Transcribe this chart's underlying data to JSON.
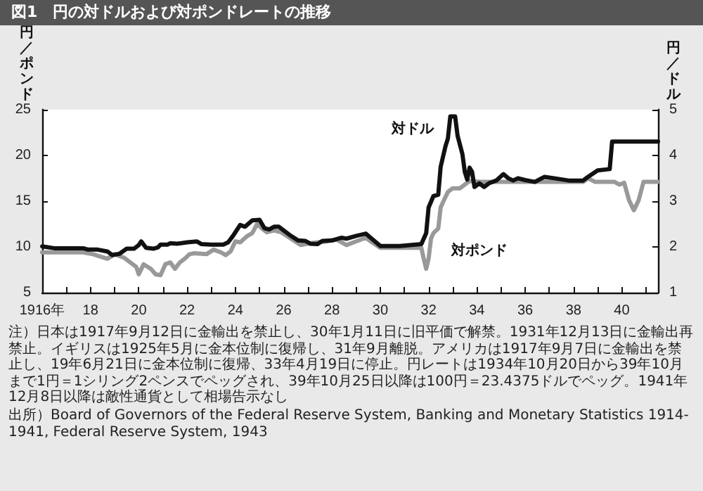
{
  "chart_data": {
    "type": "line",
    "title": "図1　円の対ドルおよび対ポンドレートの推移",
    "ylabel": "円／ポンド",
    "y2label": "円／ドル",
    "xlim": [
      1916,
      1941.5
    ],
    "xticks": [
      {
        "value": 1916,
        "label": null
      },
      {
        "value": 1917,
        "label": null
      },
      {
        "value": 1918,
        "label": null
      },
      {
        "value": 1919,
        "label": null
      },
      {
        "value": 1920,
        "label": null
      },
      {
        "value": 1921,
        "label": null
      },
      {
        "value": 1922,
        "label": null
      },
      {
        "value": 1923,
        "label": null
      },
      {
        "value": 1924,
        "label": null
      },
      {
        "value": 1925,
        "label": null
      },
      {
        "value": 1926,
        "label": null
      },
      {
        "value": 1927,
        "label": null
      },
      {
        "value": 1928,
        "label": null
      },
      {
        "value": 1929,
        "label": null
      },
      {
        "value": 1930,
        "label": null
      },
      {
        "value": 1931,
        "label": null
      },
      {
        "value": 1932,
        "label": null
      },
      {
        "value": 1933,
        "label": null
      },
      {
        "value": 1934,
        "label": null
      },
      {
        "value": 1935,
        "label": null
      },
      {
        "value": 1936,
        "label": null
      },
      {
        "value": 1937,
        "label": null
      },
      {
        "value": 1938,
        "label": null
      },
      {
        "value": 1939,
        "label": null
      },
      {
        "value": 1940,
        "label": null
      },
      {
        "value": 1941,
        "label": null
      },
      {
        "value": 1916,
        "label": "1916年"
      },
      {
        "value": 1918,
        "label": "18"
      },
      {
        "value": 1920,
        "label": "20"
      },
      {
        "value": 1922,
        "label": "22"
      },
      {
        "value": 1924,
        "label": "24"
      },
      {
        "value": 1926,
        "label": "26"
      },
      {
        "value": 1928,
        "label": "28"
      },
      {
        "value": 1930,
        "label": "30"
      },
      {
        "value": 1932,
        "label": "32"
      },
      {
        "value": 1934,
        "label": "34"
      },
      {
        "value": 1936,
        "label": "36"
      },
      {
        "value": 1938,
        "label": "38"
      },
      {
        "value": 1940,
        "label": "40"
      }
    ],
    "ylim": [
      5,
      25
    ],
    "yticks": [
      5,
      10,
      15,
      20,
      25
    ],
    "y2lim": [
      1,
      5
    ],
    "y2ticks": [
      1,
      2,
      3,
      4,
      5
    ],
    "grid": false,
    "legend": false,
    "marker": "none",
    "line_style": "solid",
    "series": [
      {
        "name": "対ドル",
        "color": "#111111",
        "axis": "y2",
        "x": [
          1916.0,
          1916.5,
          1917.7,
          1917.9,
          1918.3,
          1918.7,
          1918.9,
          1919.2,
          1919.5,
          1919.8,
          1920.0,
          1920.1,
          1920.3,
          1920.6,
          1920.8,
          1920.9,
          1921.2,
          1921.3,
          1921.6,
          1922.0,
          1922.4,
          1922.6,
          1923.0,
          1923.5,
          1923.7,
          1923.9,
          1924.2,
          1924.4,
          1924.7,
          1925.0,
          1925.2,
          1925.4,
          1925.6,
          1925.8,
          1926.3,
          1926.6,
          1926.9,
          1927.1,
          1927.4,
          1927.6,
          1928.0,
          1928.2,
          1928.4,
          1928.6,
          1929.0,
          1929.4,
          1929.6,
          1930.0,
          1930.8,
          1931.7,
          1931.9,
          1932.0,
          1932.2,
          1932.4,
          1932.5,
          1932.7,
          1932.8,
          1932.9,
          1933.1,
          1933.2,
          1933.4,
          1933.5,
          1933.6,
          1933.7,
          1933.8,
          1933.9,
          1934.1,
          1934.3,
          1934.5,
          1934.8,
          1935.1,
          1935.3,
          1935.5,
          1935.7,
          1936.0,
          1936.4,
          1936.8,
          1937.2,
          1937.8,
          1938.4,
          1938.6,
          1939.0,
          1939.5,
          1939.6,
          1939.9,
          1941.5
        ],
        "values": [
          2.01,
          1.97,
          1.97,
          1.94,
          1.94,
          1.9,
          1.82,
          1.85,
          1.96,
          1.96,
          2.04,
          2.12,
          1.98,
          1.96,
          1.99,
          2.05,
          2.05,
          2.08,
          2.07,
          2.1,
          2.12,
          2.06,
          2.05,
          2.05,
          2.1,
          2.24,
          2.48,
          2.44,
          2.58,
          2.59,
          2.41,
          2.38,
          2.44,
          2.44,
          2.24,
          2.14,
          2.13,
          2.07,
          2.06,
          2.13,
          2.14,
          2.17,
          2.2,
          2.18,
          2.24,
          2.29,
          2.2,
          2.02,
          2.02,
          2.06,
          2.3,
          2.86,
          3.11,
          3.14,
          3.75,
          4.2,
          4.37,
          4.85,
          4.85,
          4.43,
          4.03,
          3.64,
          3.47,
          3.73,
          3.64,
          3.31,
          3.39,
          3.31,
          3.39,
          3.45,
          3.59,
          3.5,
          3.45,
          3.5,
          3.46,
          3.42,
          3.53,
          3.5,
          3.45,
          3.45,
          3.53,
          3.67,
          3.7,
          4.3,
          4.3,
          4.3
        ]
      },
      {
        "name": "対ポンド",
        "color": "#999999",
        "x": [
          1916.0,
          1917.7,
          1918.1,
          1918.7,
          1919.0,
          1919.4,
          1919.7,
          1919.9,
          1920.0,
          1920.2,
          1920.5,
          1920.7,
          1920.9,
          1921.1,
          1921.3,
          1921.5,
          1921.7,
          1921.9,
          1922.1,
          1922.3,
          1922.8,
          1923.1,
          1923.4,
          1923.6,
          1923.8,
          1924.0,
          1924.2,
          1924.5,
          1924.7,
          1924.9,
          1925.1,
          1925.3,
          1925.6,
          1925.9,
          1926.3,
          1926.7,
          1927.1,
          1927.4,
          1927.8,
          1928.2,
          1928.6,
          1929.4,
          1929.6,
          1930.0,
          1931.7,
          1931.8,
          1931.9,
          1932.0,
          1932.1,
          1932.2,
          1932.4,
          1932.5,
          1932.6,
          1932.8,
          1933.0,
          1933.3,
          1933.5,
          1933.7,
          1934.1,
          1936.0,
          1938.4,
          1938.6,
          1938.9,
          1939.7,
          1939.9,
          1940.1,
          1940.3,
          1940.5,
          1940.7,
          1940.9,
          1941.5
        ],
        "values": [
          9.4,
          9.4,
          9.2,
          8.7,
          9.2,
          8.8,
          8.2,
          7.8,
          7.0,
          8.1,
          7.6,
          7.0,
          6.9,
          8.1,
          8.3,
          7.6,
          8.3,
          8.7,
          9.2,
          9.3,
          9.2,
          9.7,
          9.4,
          9.1,
          9.5,
          10.6,
          10.5,
          11.2,
          11.5,
          12.5,
          12.0,
          11.6,
          11.8,
          11.6,
          10.9,
          10.2,
          10.4,
          10.5,
          10.6,
          10.8,
          10.2,
          11.0,
          10.6,
          9.9,
          9.9,
          8.7,
          7.6,
          8.7,
          10.9,
          11.5,
          12.0,
          14.3,
          14.9,
          16.0,
          16.4,
          16.4,
          16.8,
          17.2,
          17.1,
          17.1,
          17.1,
          17.5,
          17.1,
          17.1,
          16.8,
          17.0,
          15.1,
          14.0,
          15.1,
          17.1,
          17.1
        ]
      }
    ],
    "annotations": [
      "注）日本は1917年9月12日に金輸出を禁止し、30年1月11日に旧平価で解禁。1931年12月13日に金輸出再禁止。イギリスは1925年5月に金本位制に復帰し、31年9月離脱。アメリカは1917年9月7日に金輸出を禁止し、19年6月21日に金本位制に復帰、33年4月19日に停止。円レートは1934年10月20日から39年10月まで1円＝1シリング2ペンスでペッグされ、39年10月25日以降は100円＝23.4375ドルでペッグ。1941年12月8日以降は敵性通貨として相場告示なし",
      "出所）Board of Governors of the Federal Reserve System, Banking and Monetary Statistics 1914-1941, Federal Reserve System, 1943"
    ]
  }
}
